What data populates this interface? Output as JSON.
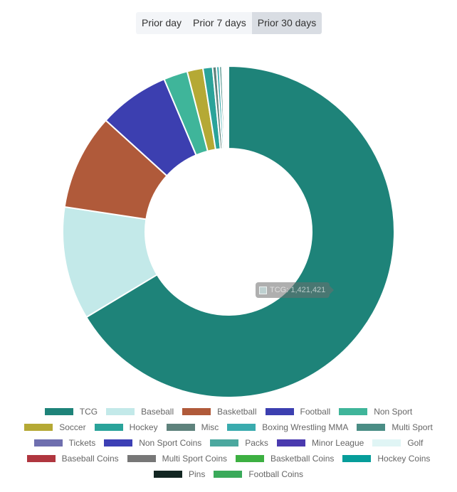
{
  "range_tabs": {
    "items": [
      "Prior day",
      "Prior 7 days",
      "Prior 30 days"
    ],
    "active": 2
  },
  "tooltip": {
    "label": "TCG",
    "value": "1,421,421"
  },
  "chart_data": {
    "type": "pie",
    "variant": "doughnut",
    "title": "",
    "legend_position": "bottom",
    "categories": [
      "TCG",
      "Baseball",
      "Basketball",
      "Football",
      "Non Sport",
      "Soccer",
      "Hockey",
      "Misc",
      "Boxing Wrestling MMA",
      "Multi Sport",
      "Tickets",
      "Non Sport Coins",
      "Packs",
      "Minor League",
      "Golf",
      "Baseball Coins",
      "Multi Sport Coins",
      "Basketball Coins",
      "Hockey Coins",
      "Pins",
      "Football Coins"
    ],
    "values": [
      1421421,
      236000,
      200000,
      148000,
      50000,
      33000,
      20000,
      8000,
      6000,
      5000,
      3000,
      2500,
      2000,
      1500,
      1200,
      900,
      800,
      700,
      600,
      400,
      300
    ],
    "colors": [
      "#1e8379",
      "#c3e9e9",
      "#b05a3a",
      "#3c3fb0",
      "#3fb59a",
      "#b5a935",
      "#2aa39a",
      "#5e827c",
      "#3aabae",
      "#4a8d85",
      "#6f6faf",
      "#3c3fb5",
      "#4ba89f",
      "#4a3aaf",
      "#e0f5f5",
      "#b0363f",
      "#777777",
      "#3db042",
      "#069d9a",
      "#122622",
      "#3aaa5a"
    ],
    "legend_rows": [
      [
        0,
        1,
        2,
        3,
        4
      ],
      [
        5,
        6,
        7,
        8,
        9
      ],
      [
        10,
        11,
        12,
        13,
        14
      ],
      [
        15,
        16,
        17,
        18
      ],
      [
        19,
        20
      ]
    ]
  }
}
